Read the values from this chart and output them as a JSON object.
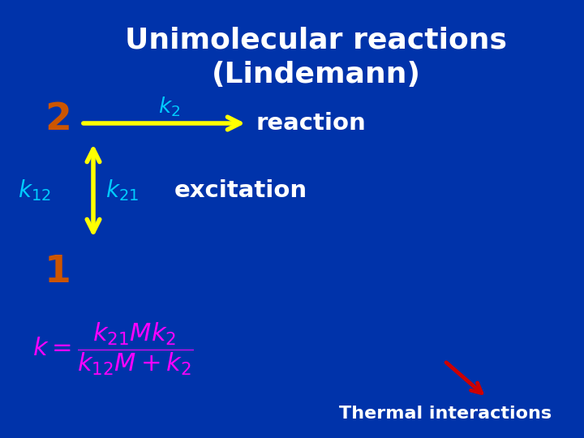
{
  "title_line1": "Unimolecular reactions",
  "title_line2": "(Lindemann)",
  "title_color": "#ffffff",
  "title_fontsize": 26,
  "bg_color": "#0033aa",
  "num2_text": "2",
  "num2_color": "#cc5500",
  "num1_text": "1",
  "num1_color": "#cc5500",
  "k2_color": "#00ccff",
  "reaction_text": "reaction",
  "reaction_color": "#ffffff",
  "k12_color": "#00ccff",
  "k21_color": "#00ccff",
  "excitation_text": "excitation",
  "excitation_color": "#ffffff",
  "arrow_h_color": "#ffff00",
  "arrow_v_color": "#ffff00",
  "formula_color": "#ff00ff",
  "thermal_text": "Thermal interactions",
  "thermal_color": "#ffffff",
  "thermal_arrow_color": "#cc0000"
}
